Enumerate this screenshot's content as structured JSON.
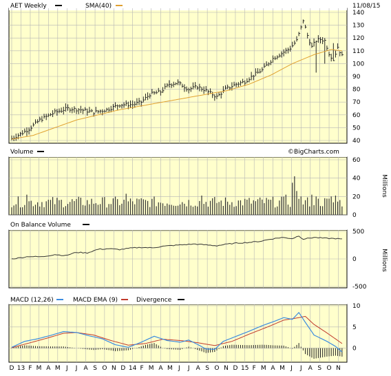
{
  "header": {
    "symbol_label": "AET Weekly",
    "sma_label": "SMA(40)",
    "date": "11/08/15"
  },
  "watermark": "©BigCharts.com",
  "colors": {
    "panel_bg": "#FFFFCC",
    "grid": "#B5B5B5",
    "sma": "#E0A030",
    "macd": "#3A8BE0",
    "signal": "#C0392B",
    "bars": "#222222"
  },
  "panels": {
    "volume": {
      "label": "Volume",
      "units": "Millions"
    },
    "obv": {
      "label": "On Balance Volume",
      "units": "Millions"
    },
    "macd": {
      "label": "MACD (12,26)",
      "ema_label": "MACD EMA (9)",
      "div_label": "Divergence"
    }
  },
  "x_axis": {
    "labels": [
      {
        "t": "D",
        "w": 0
      },
      {
        "t": "13",
        "w": 4.3
      },
      {
        "t": "F",
        "w": 8.6
      },
      {
        "t": "M",
        "w": 12.6
      },
      {
        "t": "A",
        "w": 17
      },
      {
        "t": "M",
        "w": 21.3
      },
      {
        "t": "J",
        "w": 25.6
      },
      {
        "t": "J",
        "w": 30
      },
      {
        "t": "A",
        "w": 34.3
      },
      {
        "t": "S",
        "w": 38.6
      },
      {
        "t": "O",
        "w": 43
      },
      {
        "t": "N",
        "w": 47.3
      },
      {
        "t": "D",
        "w": 51.6
      },
      {
        "t": "14",
        "w": 56
      },
      {
        "t": "F",
        "w": 60.3
      },
      {
        "t": "M",
        "w": 64.6
      },
      {
        "t": "A",
        "w": 69
      },
      {
        "t": "M",
        "w": 73.3
      },
      {
        "t": "J",
        "w": 77.6
      },
      {
        "t": "J",
        "w": 82
      },
      {
        "t": "A",
        "w": 86.3
      },
      {
        "t": "S",
        "w": 90.6
      },
      {
        "t": "O",
        "w": 95
      },
      {
        "t": "N",
        "w": 99.3
      },
      {
        "t": "D",
        "w": 103.6
      },
      {
        "t": "15",
        "w": 108
      },
      {
        "t": "F",
        "w": 112.3
      },
      {
        "t": "M",
        "w": 116.6
      },
      {
        "t": "A",
        "w": 121
      },
      {
        "t": "M",
        "w": 125.3
      },
      {
        "t": "J",
        "w": 129.6
      },
      {
        "t": "J",
        "w": 134
      },
      {
        "t": "A",
        "w": 138.3
      },
      {
        "t": "S",
        "w": 142.6
      },
      {
        "t": "O",
        "w": 147
      },
      {
        "t": "N",
        "w": 151.3
      }
    ]
  },
  "chart_data": [
    {
      "type": "line",
      "title": "AET Weekly",
      "x_unit": "weeks since start of Dec 2012",
      "ylim": [
        40,
        140
      ],
      "yticks": [
        40,
        50,
        60,
        70,
        80,
        90,
        100,
        110,
        120,
        130,
        140
      ],
      "price_anchors": [
        [
          0,
          41.5
        ],
        [
          4,
          45
        ],
        [
          8,
          49
        ],
        [
          13,
          56
        ],
        [
          20,
          62
        ],
        [
          26,
          65
        ],
        [
          32,
          64
        ],
        [
          38,
          62
        ],
        [
          44,
          64
        ],
        [
          50,
          68
        ],
        [
          56,
          68
        ],
        [
          60,
          70
        ],
        [
          64,
          76
        ],
        [
          69,
          78
        ],
        [
          73,
          84
        ],
        [
          77,
          85
        ],
        [
          82,
          80
        ],
        [
          86,
          82
        ],
        [
          90,
          79
        ],
        [
          95,
          74
        ],
        [
          99,
          80
        ],
        [
          104,
          84
        ],
        [
          108,
          86
        ],
        [
          112,
          91
        ],
        [
          116,
          95
        ],
        [
          121,
          104
        ],
        [
          125,
          108
        ],
        [
          129,
          112
        ],
        [
          132,
          118
        ],
        [
          134,
          128
        ],
        [
          135,
          134
        ],
        [
          137,
          122
        ],
        [
          139,
          113
        ],
        [
          141,
          118
        ],
        [
          143,
          119
        ],
        [
          145,
          118
        ],
        [
          147,
          108
        ],
        [
          149,
          103
        ],
        [
          151,
          113
        ],
        [
          153,
          106
        ]
      ],
      "sma_anchors": [
        [
          0,
          41
        ],
        [
          10,
          44
        ],
        [
          20,
          50
        ],
        [
          30,
          56
        ],
        [
          40,
          60
        ],
        [
          50,
          64
        ],
        [
          60,
          67
        ],
        [
          70,
          70
        ],
        [
          80,
          73
        ],
        [
          90,
          76
        ],
        [
          100,
          79
        ],
        [
          110,
          84
        ],
        [
          120,
          91
        ],
        [
          130,
          100
        ],
        [
          140,
          107
        ],
        [
          148,
          111
        ],
        [
          153,
          110
        ]
      ],
      "spike_bars": [
        [
          141,
          118,
          93
        ],
        [
          145,
          120,
          100
        ],
        [
          149,
          116,
          102
        ]
      ],
      "series": [
        {
          "name": "AET Weekly",
          "values": "weekly OHLC bars"
        },
        {
          "name": "SMA(40)",
          "values": "40-week simple moving average"
        }
      ]
    },
    {
      "type": "bar",
      "title": "Volume",
      "ylabel": "Millions",
      "ylim": [
        0,
        60
      ],
      "yticks": [
        0,
        20,
        40,
        60
      ],
      "normal_range": [
        8,
        20
      ],
      "spikes": [
        [
          7,
          22
        ],
        [
          53,
          23
        ],
        [
          88,
          21
        ],
        [
          127,
          22
        ],
        [
          130,
          35
        ],
        [
          131,
          42
        ],
        [
          132,
          26
        ],
        [
          134,
          20
        ],
        [
          139,
          22
        ],
        [
          141,
          20
        ],
        [
          148,
          20
        ],
        [
          150,
          21
        ]
      ]
    },
    {
      "type": "line",
      "title": "On Balance Volume",
      "ylabel": "Millions",
      "ylim": [
        -500,
        500
      ],
      "yticks": [
        -500,
        0,
        500
      ],
      "anchors": [
        [
          0,
          0
        ],
        [
          8,
          45
        ],
        [
          14,
          38
        ],
        [
          20,
          80
        ],
        [
          25,
          60
        ],
        [
          30,
          120
        ],
        [
          35,
          110
        ],
        [
          40,
          175
        ],
        [
          45,
          185
        ],
        [
          50,
          170
        ],
        [
          55,
          195
        ],
        [
          60,
          210
        ],
        [
          65,
          200
        ],
        [
          70,
          230
        ],
        [
          75,
          245
        ],
        [
          80,
          260
        ],
        [
          85,
          270
        ],
        [
          90,
          255
        ],
        [
          95,
          240
        ],
        [
          100,
          270
        ],
        [
          105,
          290
        ],
        [
          110,
          300
        ],
        [
          115,
          320
        ],
        [
          120,
          360
        ],
        [
          125,
          390
        ],
        [
          130,
          370
        ],
        [
          133,
          420
        ],
        [
          135,
          360
        ],
        [
          140,
          390
        ],
        [
          145,
          375
        ],
        [
          150,
          370
        ],
        [
          153,
          360
        ]
      ]
    },
    {
      "type": "line",
      "title": "MACD (12,26)",
      "ylim": [
        -3,
        10
      ],
      "yticks": [
        0,
        5,
        10
      ],
      "macd_anchors": [
        [
          0,
          0.2
        ],
        [
          6,
          1.6
        ],
        [
          12,
          2.2
        ],
        [
          18,
          3
        ],
        [
          24,
          3.9
        ],
        [
          30,
          3.7
        ],
        [
          36,
          2.9
        ],
        [
          42,
          2.2
        ],
        [
          48,
          0.8
        ],
        [
          54,
          0.2
        ],
        [
          60,
          1.4
        ],
        [
          66,
          2.8
        ],
        [
          72,
          1.8
        ],
        [
          78,
          1.4
        ],
        [
          82,
          1.9
        ],
        [
          86,
          0.9
        ],
        [
          90,
          -0.2
        ],
        [
          94,
          -0.3
        ],
        [
          98,
          1.6
        ],
        [
          104,
          2.8
        ],
        [
          110,
          4
        ],
        [
          116,
          5.3
        ],
        [
          122,
          6.4
        ],
        [
          126,
          7.2
        ],
        [
          130,
          6.8
        ],
        [
          133,
          8.4
        ],
        [
          136,
          6.1
        ],
        [
          140,
          3.1
        ],
        [
          146,
          1.6
        ],
        [
          150,
          0.4
        ],
        [
          153,
          -0.9
        ]
      ],
      "signal_anchors": [
        [
          0,
          0.1
        ],
        [
          8,
          1.2
        ],
        [
          16,
          2.3
        ],
        [
          24,
          3.5
        ],
        [
          30,
          3.7
        ],
        [
          38,
          3.1
        ],
        [
          46,
          1.8
        ],
        [
          54,
          0.7
        ],
        [
          62,
          1.1
        ],
        [
          70,
          2.1
        ],
        [
          78,
          1.8
        ],
        [
          86,
          1.3
        ],
        [
          94,
          0.6
        ],
        [
          102,
          1.6
        ],
        [
          110,
          3.3
        ],
        [
          118,
          4.9
        ],
        [
          126,
          6.6
        ],
        [
          132,
          7.1
        ],
        [
          136,
          7.5
        ],
        [
          140,
          5.6
        ],
        [
          146,
          3.6
        ],
        [
          153,
          1.1
        ]
      ],
      "series": [
        {
          "name": "MACD (12,26)"
        },
        {
          "name": "MACD EMA (9)"
        },
        {
          "name": "Divergence"
        }
      ]
    }
  ]
}
